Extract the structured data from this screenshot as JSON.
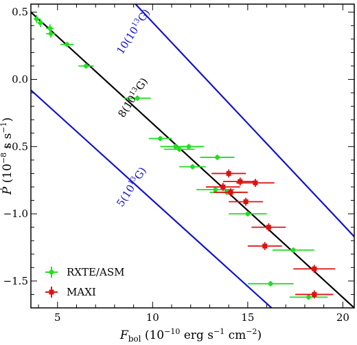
{
  "chart_data": {
    "type": "scatter",
    "xlabel": {
      "main": "F",
      "sub": "bol",
      "rest": " (10",
      "exp1": "−10",
      "mid": " erg s",
      "exp2": "−1",
      "mid2": " cm",
      "exp3": "−2",
      "end": ")"
    },
    "ylabel": {
      "main": "Ṗ",
      "rest": " (10",
      "exp1": "−8",
      "mid": " s s",
      "exp2": "−1",
      "end": ")"
    },
    "xlim": [
      3.6,
      20.6
    ],
    "ylim": [
      -1.7,
      0.56
    ],
    "x_ticks": [
      5,
      10,
      15,
      20
    ],
    "y_ticks": [
      0.5,
      0.0,
      -0.5,
      -1.0,
      -1.5
    ],
    "y_tick_labels": [
      "0.5",
      "0.0",
      "−0.5",
      "−1.0",
      "−1.5"
    ],
    "grid": false,
    "legend_position": "bottom-left",
    "colors": {
      "rxte": "#22dd22",
      "maxi": "#dd1111",
      "model_blue": "#1111cc",
      "model_black": "#000000"
    },
    "model_lines": [
      {
        "label": "10(10",
        "sup": "13",
        "unit": "G)",
        "color": "#1111cc",
        "points": [
          [
            9.1,
            0.56
          ],
          [
            20.6,
            -1.17
          ]
        ]
      },
      {
        "label": "8(10",
        "sup": "13",
        "unit": "G)",
        "color": "#000000",
        "points": [
          [
            3.6,
            0.5
          ],
          [
            20.6,
            -1.7
          ]
        ]
      },
      {
        "label": "5(10",
        "sup": "13",
        "unit": "G)",
        "color": "#1111cc",
        "points": [
          [
            3.6,
            -0.08
          ],
          [
            16.25,
            -1.7
          ]
        ]
      }
    ],
    "series": [
      {
        "name": "RXTE/ASM",
        "marker": "circle",
        "color": "#22dd22",
        "points": [
          {
            "x": 3.9,
            "y": 0.45,
            "xerr": 0.15,
            "yerr": 0.03
          },
          {
            "x": 4.1,
            "y": 0.42,
            "xerr": 0.15,
            "yerr": 0.03
          },
          {
            "x": 4.6,
            "y": 0.38,
            "xerr": 0.2,
            "yerr": 0.03
          },
          {
            "x": 4.65,
            "y": 0.34,
            "xerr": 0.25,
            "yerr": 0.03
          },
          {
            "x": 5.5,
            "y": 0.26,
            "xerr": 0.35,
            "yerr": 0.02
          },
          {
            "x": 6.5,
            "y": 0.1,
            "xerr": 0.4,
            "yerr": 0.02
          },
          {
            "x": 9.2,
            "y": -0.14,
            "xerr": 0.7,
            "yerr": 0.02
          },
          {
            "x": 10.4,
            "y": -0.44,
            "xerr": 0.6,
            "yerr": 0.02
          },
          {
            "x": 11.2,
            "y": -0.5,
            "xerr": 0.8,
            "yerr": 0.02
          },
          {
            "x": 11.9,
            "y": -0.5,
            "xerr": 0.8,
            "yerr": 0.02
          },
          {
            "x": 11.4,
            "y": -0.52,
            "xerr": 0.8,
            "yerr": 0.02
          },
          {
            "x": 12.1,
            "y": -0.65,
            "xerr": 0.7,
            "yerr": 0.02
          },
          {
            "x": 13.4,
            "y": -0.58,
            "xerr": 0.9,
            "yerr": 0.02
          },
          {
            "x": 13.3,
            "y": -0.82,
            "xerr": 1.0,
            "yerr": 0.02
          },
          {
            "x": 13.9,
            "y": -0.84,
            "xerr": 0.9,
            "yerr": 0.02
          },
          {
            "x": 15.0,
            "y": -1.0,
            "xerr": 1.0,
            "yerr": 0.02
          },
          {
            "x": 17.4,
            "y": -1.27,
            "xerr": 1.1,
            "yerr": 0.02
          },
          {
            "x": 16.2,
            "y": -1.52,
            "xerr": 1.2,
            "yerr": 0.02
          },
          {
            "x": 18.2,
            "y": -1.62,
            "xerr": 1.0,
            "yerr": 0.02
          }
        ]
      },
      {
        "name": "MAXI",
        "marker": "square",
        "color": "#dd1111",
        "points": [
          {
            "x": 14.0,
            "y": -0.7,
            "xerr": 0.9,
            "yerr": 0.03
          },
          {
            "x": 14.6,
            "y": -0.76,
            "xerr": 0.9,
            "yerr": 0.03
          },
          {
            "x": 15.4,
            "y": -0.77,
            "xerr": 1.0,
            "yerr": 0.03
          },
          {
            "x": 13.7,
            "y": -0.8,
            "xerr": 0.9,
            "yerr": 0.03
          },
          {
            "x": 14.1,
            "y": -0.84,
            "xerr": 0.9,
            "yerr": 0.03
          },
          {
            "x": 14.9,
            "y": -0.91,
            "xerr": 0.9,
            "yerr": 0.03
          },
          {
            "x": 16.1,
            "y": -1.1,
            "xerr": 0.9,
            "yerr": 0.03
          },
          {
            "x": 15.9,
            "y": -1.24,
            "xerr": 0.9,
            "yerr": 0.03
          },
          {
            "x": 18.5,
            "y": -1.41,
            "xerr": 1.1,
            "yerr": 0.03
          },
          {
            "x": 18.5,
            "y": -1.6,
            "xerr": 1.0,
            "yerr": 0.03
          }
        ]
      }
    ]
  }
}
